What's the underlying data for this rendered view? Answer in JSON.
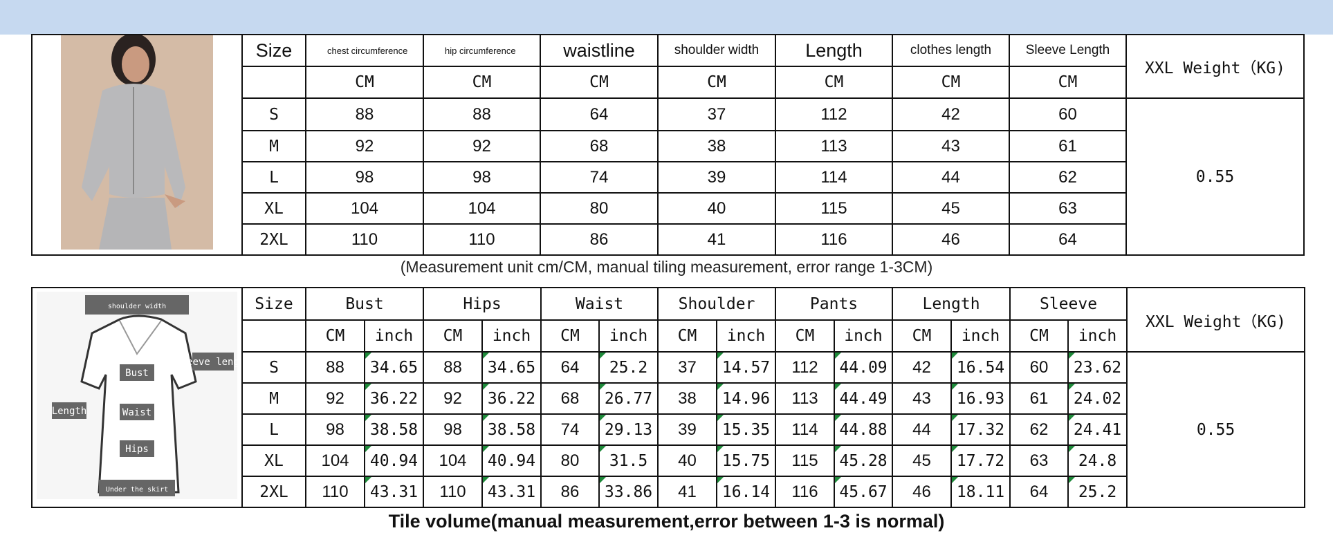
{
  "banner_color": "#c6d9f0",
  "table1": {
    "headers": [
      "Size",
      "chest circumference",
      "hip circumference",
      "waistline",
      "shoulder width",
      "Length",
      "clothes length",
      "Sleeve Length"
    ],
    "unit": "CM",
    "weight_label": "XXL Weight（KG)",
    "weight_value": "0.55",
    "rows": [
      [
        "S",
        "88",
        "88",
        "64",
        "37",
        "112",
        "42",
        "60"
      ],
      [
        "M",
        "92",
        "92",
        "68",
        "38",
        "113",
        "43",
        "61"
      ],
      [
        "L",
        "98",
        "98",
        "74",
        "39",
        "114",
        "44",
        "62"
      ],
      [
        "XL",
        "104",
        "104",
        "80",
        "40",
        "115",
        "45",
        "63"
      ],
      [
        "2XL",
        "110",
        "110",
        "86",
        "41",
        "116",
        "46",
        "64"
      ]
    ]
  },
  "caption": "(Measurement unit cm/CM, manual tiling measurement, error range 1-3CM)",
  "table2": {
    "size_label": "Size",
    "groups": [
      "Bust",
      "Hips",
      "Waist",
      "Shoulder",
      "Pants",
      "Length",
      "Sleeve"
    ],
    "units": [
      "CM",
      "inch"
    ],
    "weight_label": "XXL Weight（KG)",
    "weight_value": "0.55",
    "rows": [
      [
        "S",
        "88",
        "34.65",
        "88",
        "34.65",
        "64",
        "25.2",
        "37",
        "14.57",
        "112",
        "44.09",
        "42",
        "16.54",
        "60",
        "23.62"
      ],
      [
        "M",
        "92",
        "36.22",
        "92",
        "36.22",
        "68",
        "26.77",
        "38",
        "14.96",
        "113",
        "44.49",
        "43",
        "16.93",
        "61",
        "24.02"
      ],
      [
        "L",
        "98",
        "38.58",
        "98",
        "38.58",
        "74",
        "29.13",
        "39",
        "15.35",
        "114",
        "44.88",
        "44",
        "17.32",
        "62",
        "24.41"
      ],
      [
        "XL",
        "104",
        "40.94",
        "104",
        "40.94",
        "80",
        "31.5",
        "40",
        "15.75",
        "115",
        "45.28",
        "45",
        "17.72",
        "63",
        "24.8"
      ],
      [
        "2XL",
        "110",
        "43.31",
        "110",
        "43.31",
        "86",
        "33.86",
        "41",
        "16.14",
        "116",
        "45.67",
        "46",
        "18.11",
        "64",
        "25.2"
      ]
    ],
    "diagram_labels": [
      "shoulder width",
      "sleeve length",
      "Bust",
      "Length",
      "Waist",
      "Hips",
      "Under the skirt"
    ]
  },
  "footer": "Tile volume(manual measurement,error between 1-3 is normal)"
}
